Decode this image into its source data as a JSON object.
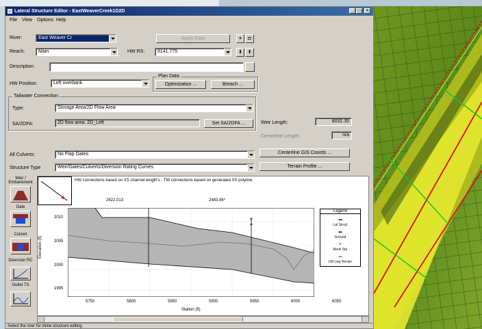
{
  "window": {
    "title": "Lateral Structure Editor - EastWeaverCreek1D2D",
    "controls": {
      "minimize": "_",
      "maximize": "□",
      "close": "×"
    }
  },
  "menu": [
    "File",
    "View",
    "Options",
    "Help"
  ],
  "form": {
    "river_label": "River:",
    "river_value": "East Weaver Cr",
    "reach_label": "Reach:",
    "reach_value": "Main",
    "hw_rs_label": "HW RS:",
    "hw_rs_value": "8141.775",
    "apply_data": "Apply Data",
    "description_label": "Description",
    "description_value": "",
    "hw_position_label": "HW Position:",
    "hw_position_value": "Left overbank",
    "plan_data_label": "Plan Data",
    "optimization": "Optimization ...",
    "breach": "Breach ...",
    "tailwater_group": "Tailwater Connection",
    "type_label": "Type:",
    "type_value": "Storage Area/2D Flow Area",
    "sa_label": "SA/2DFA:",
    "sa_value": "2D flow area: 2D_Left",
    "set_sa": "Set SA/2DFA ...",
    "weir_length_label": "Weir Length:",
    "weir_length_value": "8032.35",
    "centerline_length_label": "Centerline Length:",
    "centerline_length_value": "n/a",
    "all_culverts_label": "All Culverts:",
    "all_culverts_value": "No Flap Gates",
    "structure_type_label": "Structure Type",
    "structure_type_value": "Weir/Gates/Culverts/Diversion Rating Curves",
    "centerline_gis": "Centerline GIS Coords ...",
    "terrain_profile": "Terrain Profile ..."
  },
  "sidebar": [
    {
      "label": "Weir / Embankment"
    },
    {
      "label": "Gate"
    },
    {
      "label": "Culvert"
    },
    {
      "label": "Diversion RC"
    },
    {
      "label": "Outlet TS"
    }
  ],
  "plot": {
    "note": "HW connections based on XS channel length's - TW connections based on generated XS polyline",
    "stations_top": [
      "2622.013",
      "2483.86*"
    ],
    "ylabel": "Elevation (ft)",
    "xlabel": "Station (ft)",
    "yticks": [
      "2010",
      "2005",
      "2000",
      "1995"
    ],
    "xticks": [
      "5750",
      "5800",
      "5850",
      "5900",
      "5950",
      "6000",
      "6050"
    ],
    "legend_title": "Legend",
    "legend": [
      "Lat Struct",
      "Ground",
      "Bank Sta",
      "LW Lew Terrain"
    ]
  },
  "status": "Select the river for inline structure editing",
  "colors": {
    "title_bar": "#0a246a",
    "window_bg": "#d4d0c8",
    "map_green": "#6f9a1f",
    "river_line": "#d81e1e"
  }
}
